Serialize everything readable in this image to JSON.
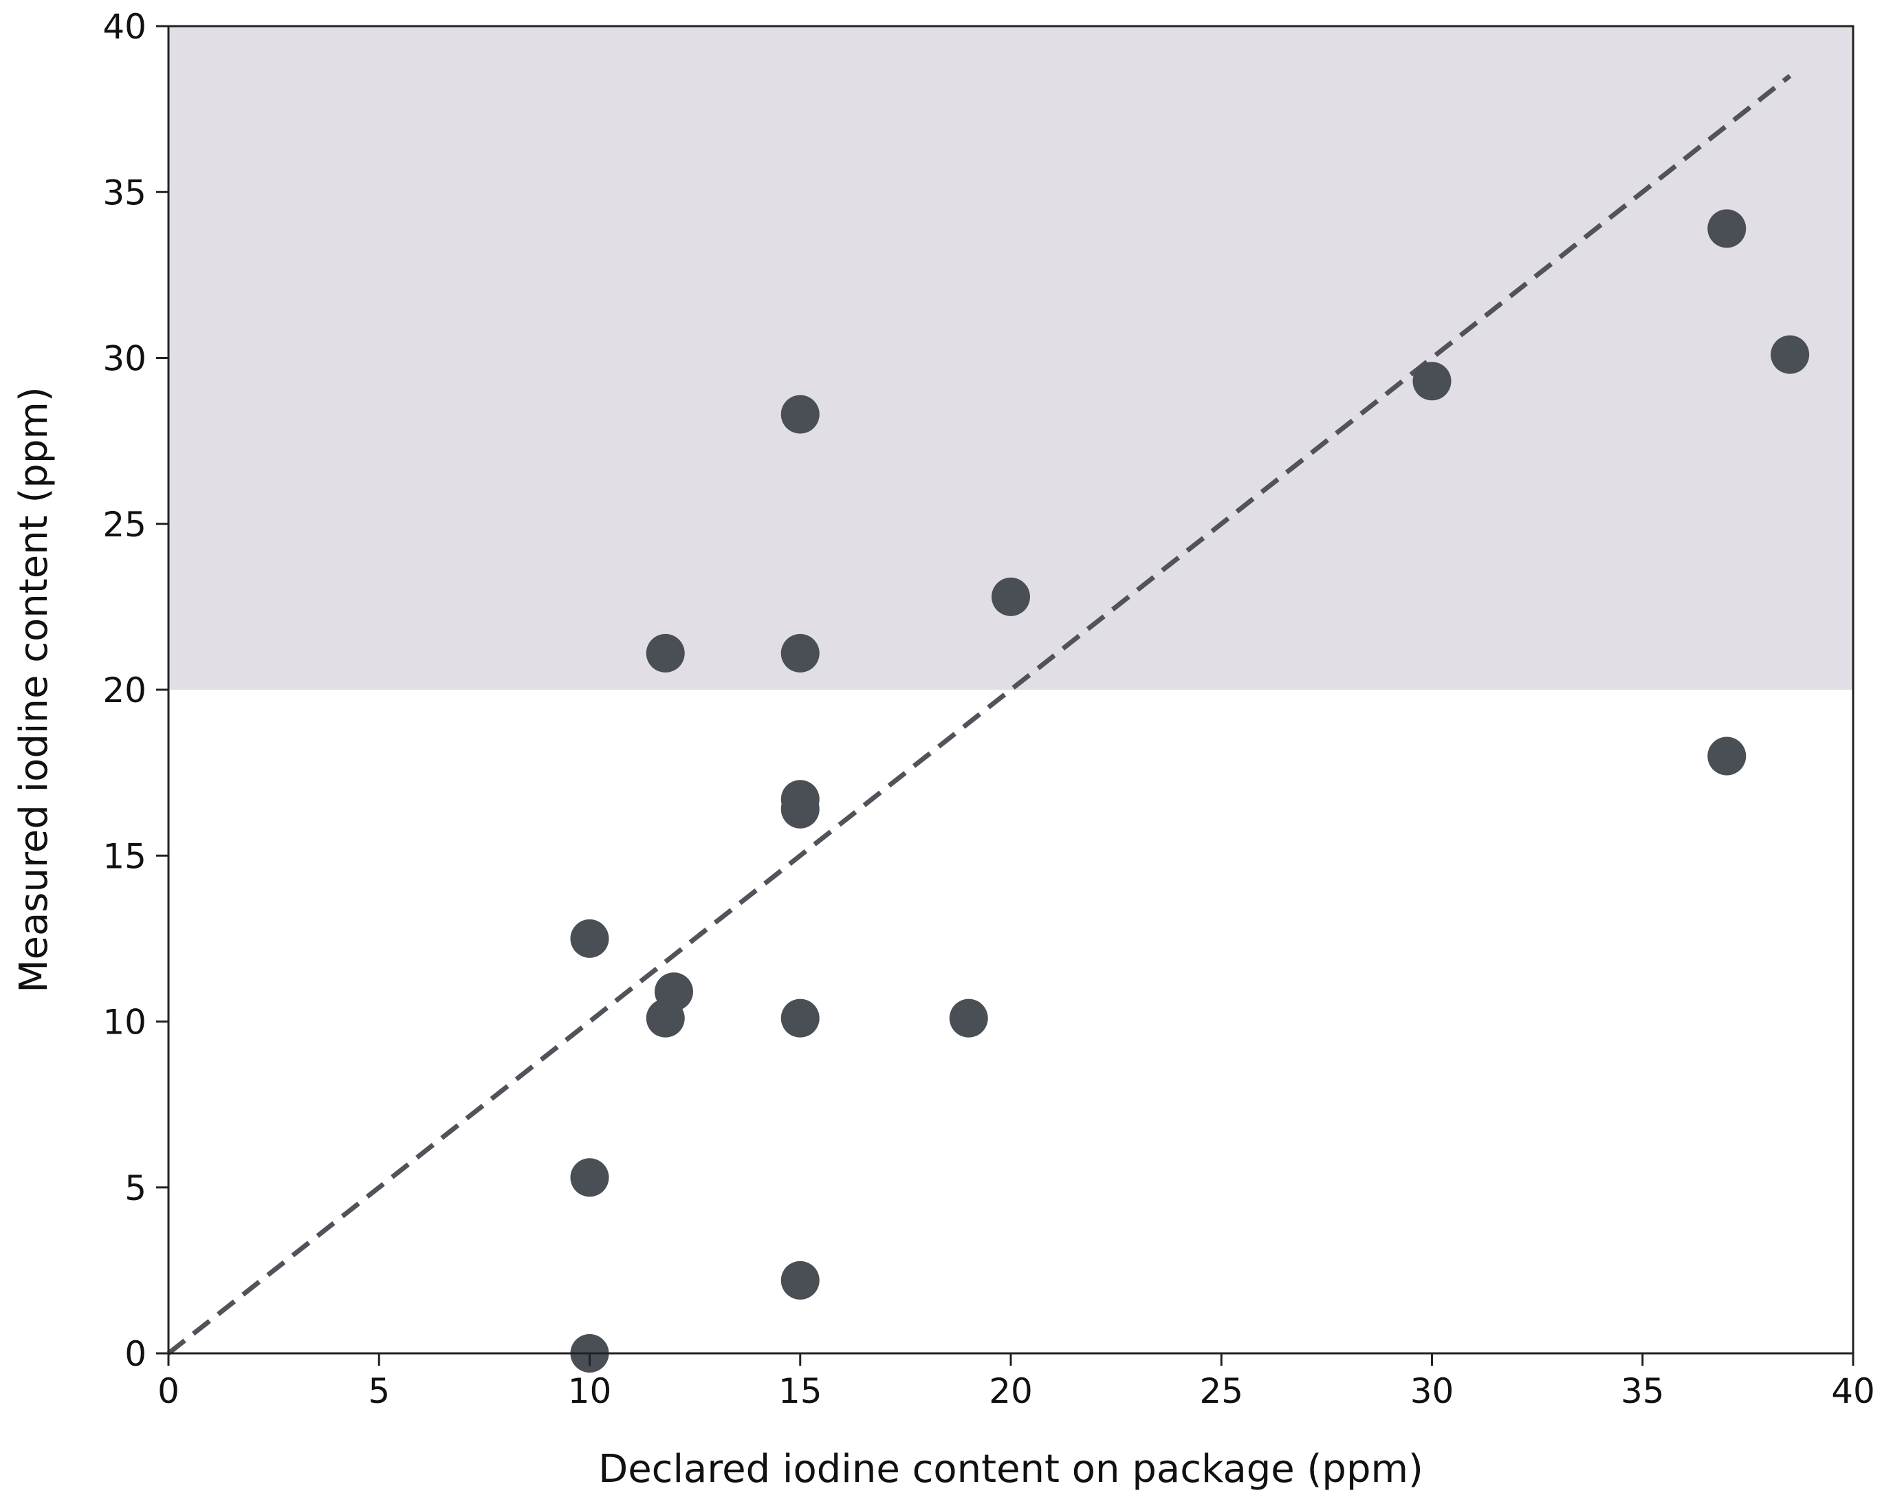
{
  "chart_data": {
    "type": "scatter",
    "xlabel": "Declared iodine content on package (ppm)",
    "ylabel": "Measured iodine content (ppm)",
    "xlim": [
      0,
      40
    ],
    "ylim": [
      0,
      40
    ],
    "x_ticks": [
      "0",
      "5",
      "10",
      "15",
      "20",
      "25",
      "30",
      "35",
      "40"
    ],
    "y_ticks": [
      "0",
      "5",
      "10",
      "15",
      "20",
      "25",
      "30",
      "35",
      "40"
    ],
    "grid": false,
    "shaded_region": {
      "y_from": 20,
      "y_to": 40,
      "color": "#e1dee6"
    },
    "reference_line": {
      "type": "identity",
      "from": [
        0,
        0
      ],
      "to": [
        38.5,
        38.5
      ],
      "style": "dashed",
      "color": "#505359"
    },
    "series": [
      {
        "color": "#4a4e55",
        "points": [
          {
            "x": 10,
            "y": 0
          },
          {
            "x": 10,
            "y": 5.3
          },
          {
            "x": 10,
            "y": 12.5
          },
          {
            "x": 11.8,
            "y": 10.1
          },
          {
            "x": 12,
            "y": 10.9
          },
          {
            "x": 11.8,
            "y": 21.1
          },
          {
            "x": 15,
            "y": 2.2
          },
          {
            "x": 15,
            "y": 10.1
          },
          {
            "x": 15,
            "y": 16.4
          },
          {
            "x": 15,
            "y": 16.7
          },
          {
            "x": 15,
            "y": 21.1
          },
          {
            "x": 15,
            "y": 28.3
          },
          {
            "x": 19,
            "y": 10.1
          },
          {
            "x": 20,
            "y": 22.8
          },
          {
            "x": 30,
            "y": 29.3
          },
          {
            "x": 37,
            "y": 18.0
          },
          {
            "x": 37,
            "y": 33.9
          },
          {
            "x": 38.5,
            "y": 30.1
          }
        ]
      }
    ]
  }
}
